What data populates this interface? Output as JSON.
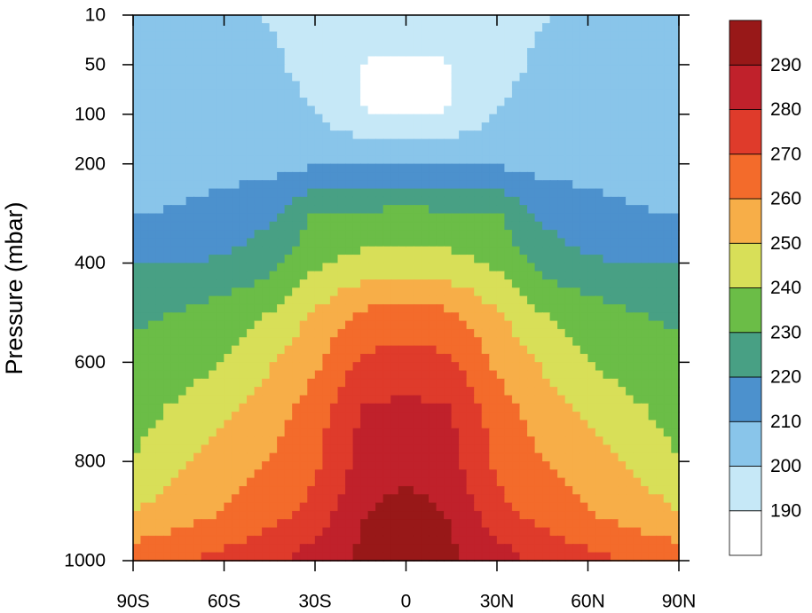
{
  "chart_data": {
    "type": "contour",
    "ylabel": "Pressure (mbar)",
    "x": [
      -90,
      -75,
      -60,
      -45,
      -30,
      -15,
      0,
      15,
      30,
      45,
      60,
      75,
      90
    ],
    "xlim": [
      -90,
      90
    ],
    "xticks": [
      {
        "value": -90,
        "label": "90S"
      },
      {
        "value": -60,
        "label": "60S"
      },
      {
        "value": -30,
        "label": "30S"
      },
      0,
      {
        "value": 30,
        "label": "30N"
      },
      {
        "value": 60,
        "label": "60N"
      },
      {
        "value": 90,
        "label": "90N"
      }
    ],
    "y": [
      10,
      50,
      100,
      200,
      300,
      400,
      500,
      600,
      700,
      800,
      900,
      1000
    ],
    "ylim": [
      10,
      1000
    ],
    "yticks": [
      10,
      50,
      100,
      200,
      400,
      600,
      800,
      1000
    ],
    "z": [
      [
        205,
        204,
        202,
        199,
        196,
        198,
        201,
        198,
        196,
        199,
        202,
        204,
        205
      ],
      [
        207,
        206,
        205,
        203,
        195,
        189.8,
        187,
        189.8,
        195,
        203,
        205,
        206,
        207
      ],
      [
        208,
        207,
        206,
        205,
        201,
        190.3,
        188,
        190.3,
        201,
        205,
        206,
        207,
        208
      ],
      [
        206,
        206,
        206,
        206,
        209,
        210.2,
        210.5,
        210.2,
        209,
        206,
        206,
        206,
        206
      ],
      [
        209,
        211,
        214,
        218,
        230.8,
        231.5,
        232,
        231.5,
        230.8,
        218,
        214,
        211,
        209
      ],
      [
        219.5,
        220,
        221,
        226,
        238,
        243,
        245,
        243,
        238,
        226,
        221,
        220,
        219.5
      ],
      [
        228,
        230.5,
        235,
        240,
        251,
        261,
        264,
        261,
        251,
        240,
        235,
        230.5,
        228
      ],
      [
        233,
        235,
        240,
        249,
        258,
        272,
        274,
        272,
        258,
        249,
        240,
        235,
        233
      ],
      [
        236,
        242,
        248,
        255,
        265,
        281,
        283,
        281,
        265,
        255,
        248,
        242,
        236
      ],
      [
        240,
        249,
        255,
        260,
        268,
        282,
        287,
        282,
        268,
        260,
        255,
        249,
        240
      ],
      [
        250,
        255,
        260,
        266,
        273,
        289,
        294,
        289,
        273,
        266,
        260,
        255,
        250
      ],
      [
        266,
        269,
        273,
        278,
        285,
        292,
        297,
        292,
        285,
        278,
        273,
        269,
        266
      ]
    ],
    "levels": [
      190,
      200,
      210,
      220,
      230,
      240,
      250,
      260,
      270,
      280,
      290
    ],
    "colors": [
      "#ffffff",
      "#c6e8f7",
      "#89c5ea",
      "#4c91cd",
      "#48a084",
      "#6bbd47",
      "#d8df58",
      "#f7ae48",
      "#f36b2b",
      "#df3b2b",
      "#c0212b",
      "#981818"
    ]
  }
}
